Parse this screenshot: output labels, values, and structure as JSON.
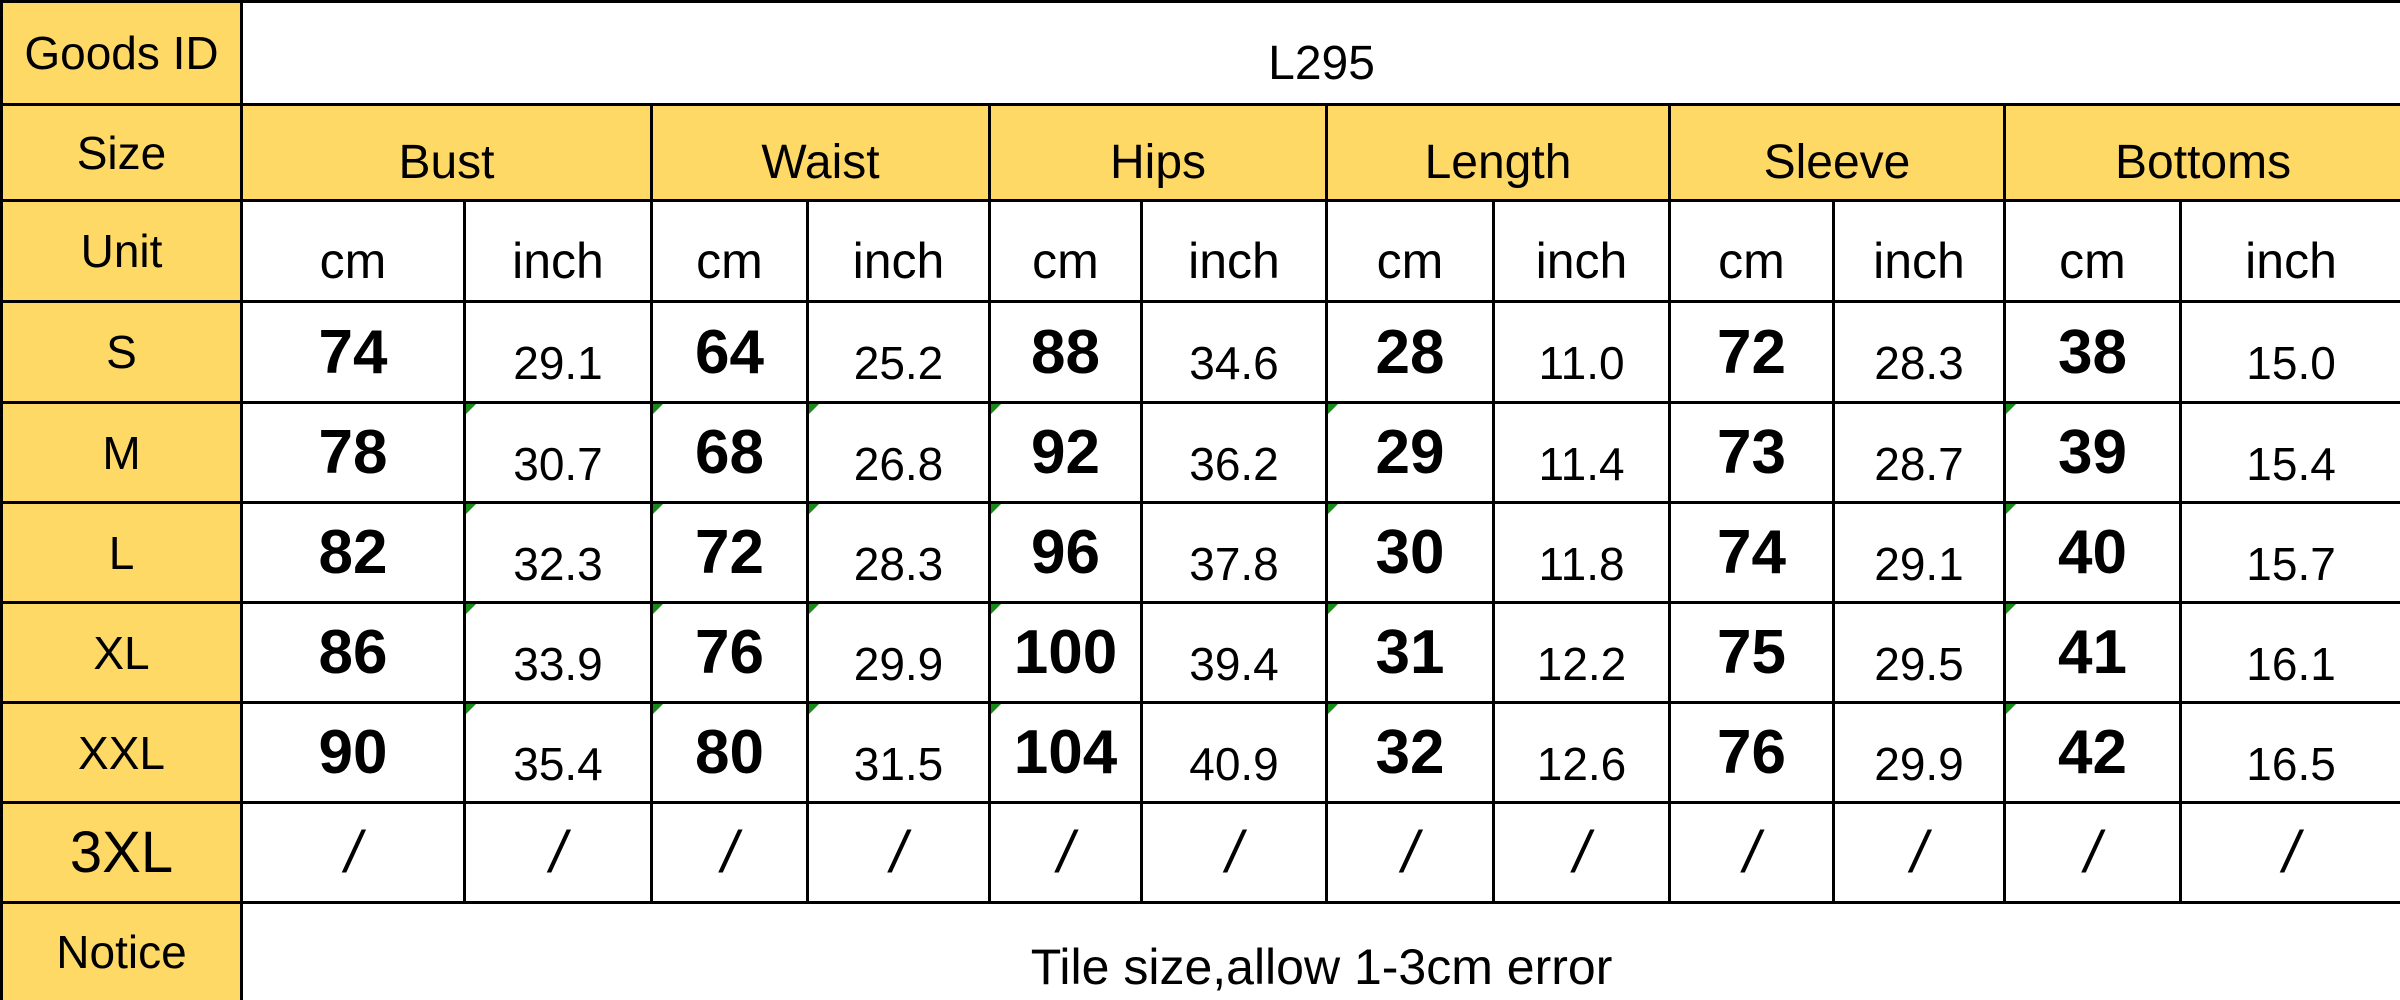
{
  "table": {
    "goods_id_label": "Goods ID",
    "goods_id": "L295",
    "size_label": "Size",
    "groups": [
      "Bust",
      "Waist",
      "Hips",
      "Length",
      "Sleeve",
      "Bottoms"
    ],
    "unit_label": "Unit",
    "units": [
      "cm",
      "inch",
      "cm",
      "inch",
      "cm",
      "inch",
      "cm",
      "inch",
      "cm",
      "inch",
      "cm",
      "inch"
    ],
    "rows": [
      {
        "size": "S",
        "cells": [
          "74",
          "29.1",
          "64",
          "25.2",
          "88",
          "34.6",
          "28",
          "11.0",
          "72",
          "28.3",
          "38",
          "15.0"
        ]
      },
      {
        "size": "M",
        "cells": [
          "78",
          "30.7",
          "68",
          "26.8",
          "92",
          "36.2",
          "29",
          "11.4",
          "73",
          "28.7",
          "39",
          "15.4"
        ]
      },
      {
        "size": "L",
        "cells": [
          "82",
          "32.3",
          "72",
          "28.3",
          "96",
          "37.8",
          "30",
          "11.8",
          "74",
          "29.1",
          "40",
          "15.7"
        ]
      },
      {
        "size": "XL",
        "cells": [
          "86",
          "33.9",
          "76",
          "29.9",
          "100",
          "39.4",
          "31",
          "12.2",
          "75",
          "29.5",
          "41",
          "16.1"
        ]
      },
      {
        "size": "XXL",
        "cells": [
          "90",
          "35.4",
          "80",
          "31.5",
          "104",
          "40.9",
          "32",
          "12.6",
          "76",
          "29.9",
          "42",
          "16.5"
        ]
      },
      {
        "size": "3XL",
        "cells": [
          "/",
          "/",
          "/",
          "/",
          "/",
          "/",
          "/",
          "/",
          "/",
          "/",
          "/",
          "/"
        ]
      }
    ],
    "notice_label": "Notice",
    "notice": "Tile size,allow 1-3cm error"
  }
}
